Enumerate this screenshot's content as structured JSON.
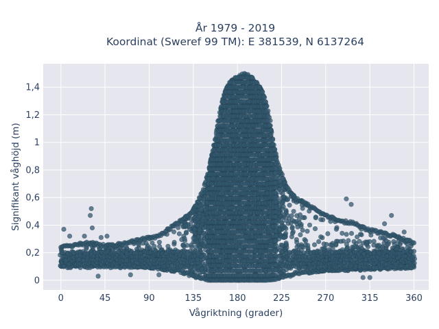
{
  "chart_data": {
    "type": "scatter",
    "title_line1": "År 1979 - 2019",
    "title_line2": "Koordinat (Sweref 99 TM): E 381539, N 6137264",
    "xlabel": "Vågriktning (grader)",
    "ylabel": "Signifikant våghöjd (m)",
    "xlim": [
      -18,
      375
    ],
    "ylim": [
      -0.07,
      1.57
    ],
    "xticks": [
      0,
      45,
      90,
      135,
      180,
      225,
      270,
      315,
      360
    ],
    "xtick_labels": [
      "0",
      "45",
      "90",
      "135",
      "180",
      "225",
      "270",
      "315",
      "360"
    ],
    "yticks": [
      0,
      0.2,
      0.4,
      0.6,
      0.8,
      1.0,
      1.2,
      1.4
    ],
    "ytick_labels": [
      "0",
      "0,2",
      "0,4",
      "0,6",
      "0,8",
      "1",
      "1,2",
      "1,4"
    ],
    "grid": true,
    "marker_color": "#34586e",
    "upper_envelope": {
      "x": [
        0,
        20,
        30,
        45,
        60,
        80,
        100,
        110,
        120,
        130,
        135,
        140,
        145,
        150,
        155,
        160,
        165,
        170,
        175,
        180,
        185,
        190,
        195,
        200,
        205,
        210,
        215,
        220,
        225,
        230,
        240,
        250,
        260,
        270,
        285,
        300,
        315,
        330,
        345,
        360
      ],
      "y": [
        0.25,
        0.27,
        0.28,
        0.26,
        0.27,
        0.3,
        0.33,
        0.38,
        0.43,
        0.48,
        0.52,
        0.58,
        0.67,
        0.78,
        0.95,
        1.15,
        1.32,
        1.42,
        1.46,
        1.48,
        1.5,
        1.5,
        1.47,
        1.44,
        1.38,
        1.28,
        1.08,
        0.88,
        0.78,
        0.68,
        0.6,
        0.56,
        0.52,
        0.48,
        0.44,
        0.42,
        0.37,
        0.35,
        0.32,
        0.28
      ]
    },
    "lower_envelope": {
      "x": [
        0,
        45,
        90,
        120,
        135,
        150,
        180,
        210,
        225,
        240,
        270,
        300,
        330,
        360
      ],
      "y": [
        0.1,
        0.1,
        0.09,
        0.06,
        0.02,
        0.0,
        0.0,
        0.0,
        0.01,
        0.04,
        0.07,
        0.07,
        0.08,
        0.09
      ]
    },
    "outliers": [
      {
        "x": 3,
        "y": 0.37
      },
      {
        "x": 31,
        "y": 0.52
      },
      {
        "x": 30,
        "y": 0.47
      },
      {
        "x": 32,
        "y": 0.38
      },
      {
        "x": 9,
        "y": 0.32
      },
      {
        "x": 24,
        "y": 0.32
      },
      {
        "x": 41,
        "y": 0.31
      },
      {
        "x": 47,
        "y": 0.32
      },
      {
        "x": 38,
        "y": 0.03
      },
      {
        "x": 71,
        "y": 0.04
      },
      {
        "x": 100,
        "y": 0.04
      },
      {
        "x": 291,
        "y": 0.59
      },
      {
        "x": 296,
        "y": 0.55
      },
      {
        "x": 330,
        "y": 0.41
      },
      {
        "x": 337,
        "y": 0.47
      },
      {
        "x": 350,
        "y": 0.35
      },
      {
        "x": 353,
        "y": 0.29
      },
      {
        "x": 315,
        "y": 0.02
      },
      {
        "x": 308,
        "y": 0.02
      }
    ]
  }
}
